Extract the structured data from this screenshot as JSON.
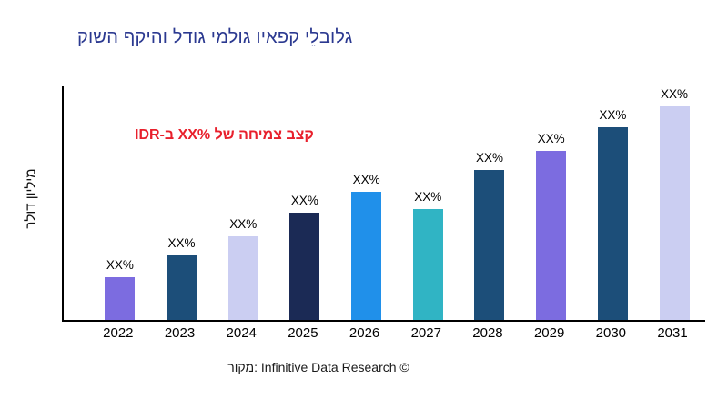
{
  "title": "קושה ףקיהו לדוג ימלוג ויאפק ילֵבולג",
  "ylabel": "רלוד ןוילימ",
  "annotation": "IDR-ב XX% לש החימצ בצק",
  "source": "רוקמ: Infinitive Data Research ©",
  "colors": {
    "title": "#2b3990",
    "annotation": "#e8202c",
    "axis": "#000000"
  },
  "chart_data": {
    "type": "bar",
    "title": "קושה ףקיהו לדוג ימלוג ויאפק ילֵבולג",
    "ylabel": "רלוד ןוילימ",
    "categories": [
      "2022",
      "2023",
      "2024",
      "2025",
      "2026",
      "2027",
      "2028",
      "2029",
      "2030",
      "2031"
    ],
    "values": [
      20,
      30,
      39,
      50,
      60,
      52,
      70,
      79,
      90,
      100
    ],
    "bar_labels": [
      "XX%",
      "XX%",
      "XX%",
      "XX%",
      "XX%",
      "XX%",
      "XX%",
      "XX%",
      "XX%",
      "XX%"
    ],
    "bar_colors": [
      "#7c6ce0",
      "#1c4e79",
      "#cbcef2",
      "#1b2a55",
      "#2090ea",
      "#30b4c4",
      "#1c4e79",
      "#7c6ce0",
      "#1c4e79",
      "#cbcef2"
    ],
    "annotation": "IDR-ב XX% לש החימצ בצק",
    "source": "רוקמ: Infinitive Data Research ©",
    "legend": "none",
    "grid": "off"
  }
}
